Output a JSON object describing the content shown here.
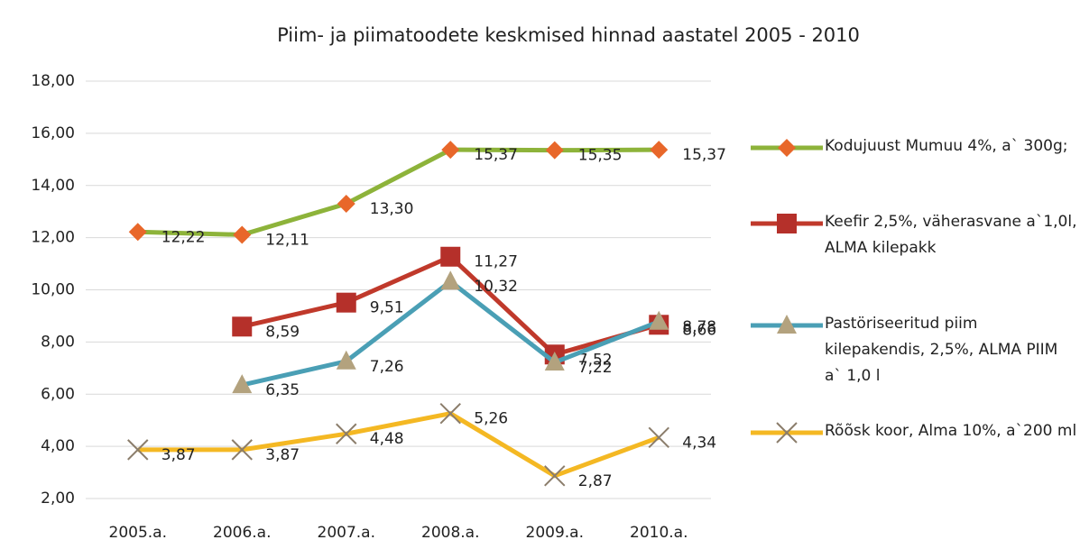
{
  "chart_data": {
    "type": "line",
    "title": "Piim- ja piimatoodete keskmised hinnad aastatel 2005 - 2010",
    "categories": [
      "2005.a.",
      "2006.a.",
      "2007.a.",
      "2008.a.",
      "2009.a.",
      "2010.a."
    ],
    "series": [
      {
        "name": "Kodujuust Mumuu 4%,   a` 300g;",
        "color": "#8db33a",
        "marker": "diamond",
        "marker_color": "#e8672a",
        "values": [
          12.22,
          12.11,
          13.3,
          15.37,
          15.35,
          15.37
        ],
        "value_labels": [
          "12,22",
          "12,11",
          "13,30",
          "15,37",
          "15,35",
          "15,37"
        ]
      },
      {
        "name": "Keefir 2,5%, väherasvane a`1,0l, ALMA kilepakk",
        "color": "#c0392b",
        "marker": "square",
        "marker_color": "#b5302a",
        "values": [
          null,
          8.59,
          9.51,
          11.27,
          7.52,
          8.66
        ],
        "value_labels": [
          null,
          "8,59",
          "9,51",
          "11,27",
          "7,52",
          "8,66"
        ]
      },
      {
        "name": "Pastöriseeritud piim kilepakendis, 2,5%, ALMA PIIM a` 1,0 l",
        "color": "#4a9fb5",
        "marker": "triangle",
        "marker_color": "#b3a27e",
        "values": [
          null,
          6.35,
          7.26,
          10.32,
          7.22,
          8.78
        ],
        "value_labels": [
          null,
          "6,35",
          "7,26",
          "10,32",
          "7,22",
          "8,78"
        ]
      },
      {
        "name": "Rõõsk koor, Alma 10%, a`200 ml",
        "color": "#f4b823",
        "marker": "x",
        "marker_color": "#8b7d6b",
        "values": [
          3.87,
          3.87,
          4.48,
          5.26,
          2.87,
          4.34
        ],
        "value_labels": [
          "3,87",
          "3,87",
          "4,48",
          "5,26",
          "2,87",
          "4,34"
        ]
      }
    ],
    "ylim": [
      2,
      18
    ],
    "yticks": [
      {
        "value": 2,
        "label": "2,00"
      },
      {
        "value": 4,
        "label": "4,00"
      },
      {
        "value": 6,
        "label": "6,00"
      },
      {
        "value": 8,
        "label": "8,00"
      },
      {
        "value": 10,
        "label": "10,00"
      },
      {
        "value": 12,
        "label": "12,00"
      },
      {
        "value": 14,
        "label": "14,00"
      },
      {
        "value": 16,
        "label": "16,00"
      },
      {
        "value": 18,
        "label": "18,00"
      }
    ],
    "grid": true,
    "legend": "right"
  }
}
